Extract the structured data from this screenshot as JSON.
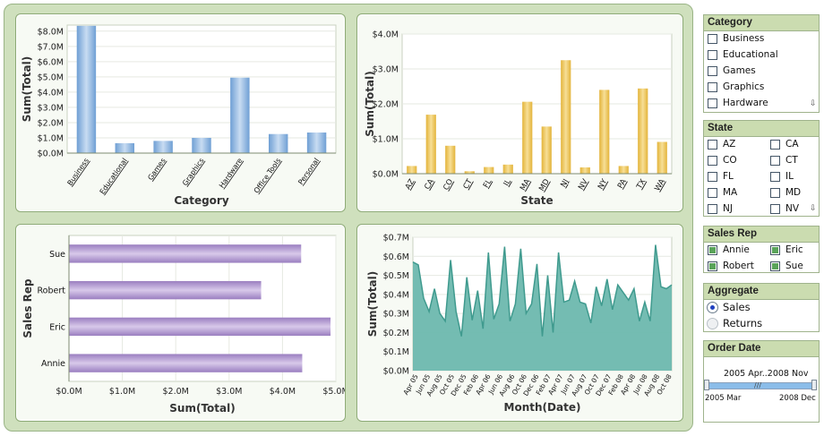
{
  "charts": {
    "category": {
      "type": "bar",
      "categories": [
        "Business",
        "Educational",
        "Games",
        "Graphics",
        "Hardware",
        "Office Tools",
        "Personal"
      ],
      "values": [
        8.35,
        0.65,
        0.8,
        1.0,
        4.95,
        1.25,
        1.35
      ],
      "ticks": [
        "$0.0M",
        "$1.0M",
        "$2.0M",
        "$3.0M",
        "$4.0M",
        "$5.0M",
        "$6.0M",
        "$7.0M",
        "$8.0M"
      ],
      "ylim": [
        0,
        8.4
      ],
      "xlabel": "Category",
      "ylabel": "Sum(Total)",
      "color": "#85aedb"
    },
    "state": {
      "type": "bar",
      "categories": [
        "AZ",
        "CA",
        "CO",
        "CT",
        "FL",
        "IL",
        "MA",
        "MD",
        "NJ",
        "NV",
        "NY",
        "PA",
        "TX",
        "WA"
      ],
      "values": [
        0.22,
        1.69,
        0.8,
        0.07,
        0.19,
        0.26,
        2.06,
        1.35,
        3.25,
        0.18,
        2.4,
        0.22,
        2.44,
        0.91
      ],
      "ticks": [
        "$0.0M",
        "$1.0M",
        "$2.0M",
        "$3.0M",
        "$4.0M"
      ],
      "ylim": [
        0,
        4.0
      ],
      "xlabel": "State",
      "ylabel": "Sum(Total)",
      "color": "#edc04e"
    },
    "salesrep": {
      "type": "bar",
      "categories": [
        "Sue",
        "Robert",
        "Eric",
        "Annie"
      ],
      "values": [
        4.35,
        3.6,
        4.9,
        4.37
      ],
      "ticks": [
        "$0.0M",
        "$1.0M",
        "$2.0M",
        "$3.0M",
        "$4.0M",
        "$5.0M"
      ],
      "xlim": [
        0,
        5.0
      ],
      "xlabel": "Sum(Total)",
      "ylabel": "Sales Rep",
      "color": "#a68ac8"
    },
    "month": {
      "type": "area",
      "tick_labels": [
        "Apr 05",
        "Jun 05",
        "Aug 05",
        "Oct 05",
        "Dec 05",
        "Feb 06",
        "Apr 06",
        "Jun 06",
        "Aug 06",
        "Oct 06",
        "Dec 06",
        "Feb 07",
        "Apr 07",
        "Jun 07",
        "Aug 07",
        "Oct 07",
        "Dec 07",
        "Feb 08",
        "Apr 08",
        "Jun 08",
        "Aug 08",
        "Oct 08"
      ],
      "values": [
        0.57,
        0.555,
        0.38,
        0.31,
        0.43,
        0.3,
        0.26,
        0.58,
        0.31,
        0.18,
        0.49,
        0.265,
        0.42,
        0.22,
        0.62,
        0.27,
        0.35,
        0.65,
        0.26,
        0.35,
        0.64,
        0.3,
        0.35,
        0.56,
        0.18,
        0.5,
        0.2,
        0.62,
        0.36,
        0.37,
        0.47,
        0.36,
        0.35,
        0.25,
        0.44,
        0.34,
        0.48,
        0.32,
        0.45,
        0.41,
        0.37,
        0.43,
        0.26,
        0.36,
        0.26,
        0.66,
        0.44,
        0.43,
        0.45
      ],
      "ticks": [
        "$0.0M",
        "$0.1M",
        "$0.2M",
        "$0.3M",
        "$0.4M",
        "$0.5M",
        "$0.6M",
        "$0.7M"
      ],
      "ylim": [
        0,
        0.7
      ],
      "xlabel": "Month(Date)",
      "ylabel": "Sum(Total)",
      "color": "#6db8ae"
    }
  },
  "filters": {
    "category": {
      "title": "Category",
      "items": [
        "Business",
        "Educational",
        "Games",
        "Graphics",
        "Hardware"
      ]
    },
    "state": {
      "title": "State",
      "items": [
        "AZ",
        "CA",
        "CO",
        "CT",
        "FL",
        "IL",
        "MA",
        "MD",
        "NJ",
        "NV"
      ]
    },
    "salesrep": {
      "title": "Sales Rep",
      "items": [
        "Annie",
        "Eric",
        "Robert",
        "Sue"
      ]
    },
    "aggregate": {
      "title": "Aggregate",
      "options": [
        "Sales",
        "Returns"
      ],
      "selected": "Sales"
    },
    "orderdate": {
      "title": "Order Date",
      "range_label": "2005 Apr..2008 Nov",
      "min_label": "2005 Mar",
      "max_label": "2008 Dec",
      "handle_glyph": "///"
    }
  },
  "icons": {
    "scroll_down": "⇩"
  }
}
